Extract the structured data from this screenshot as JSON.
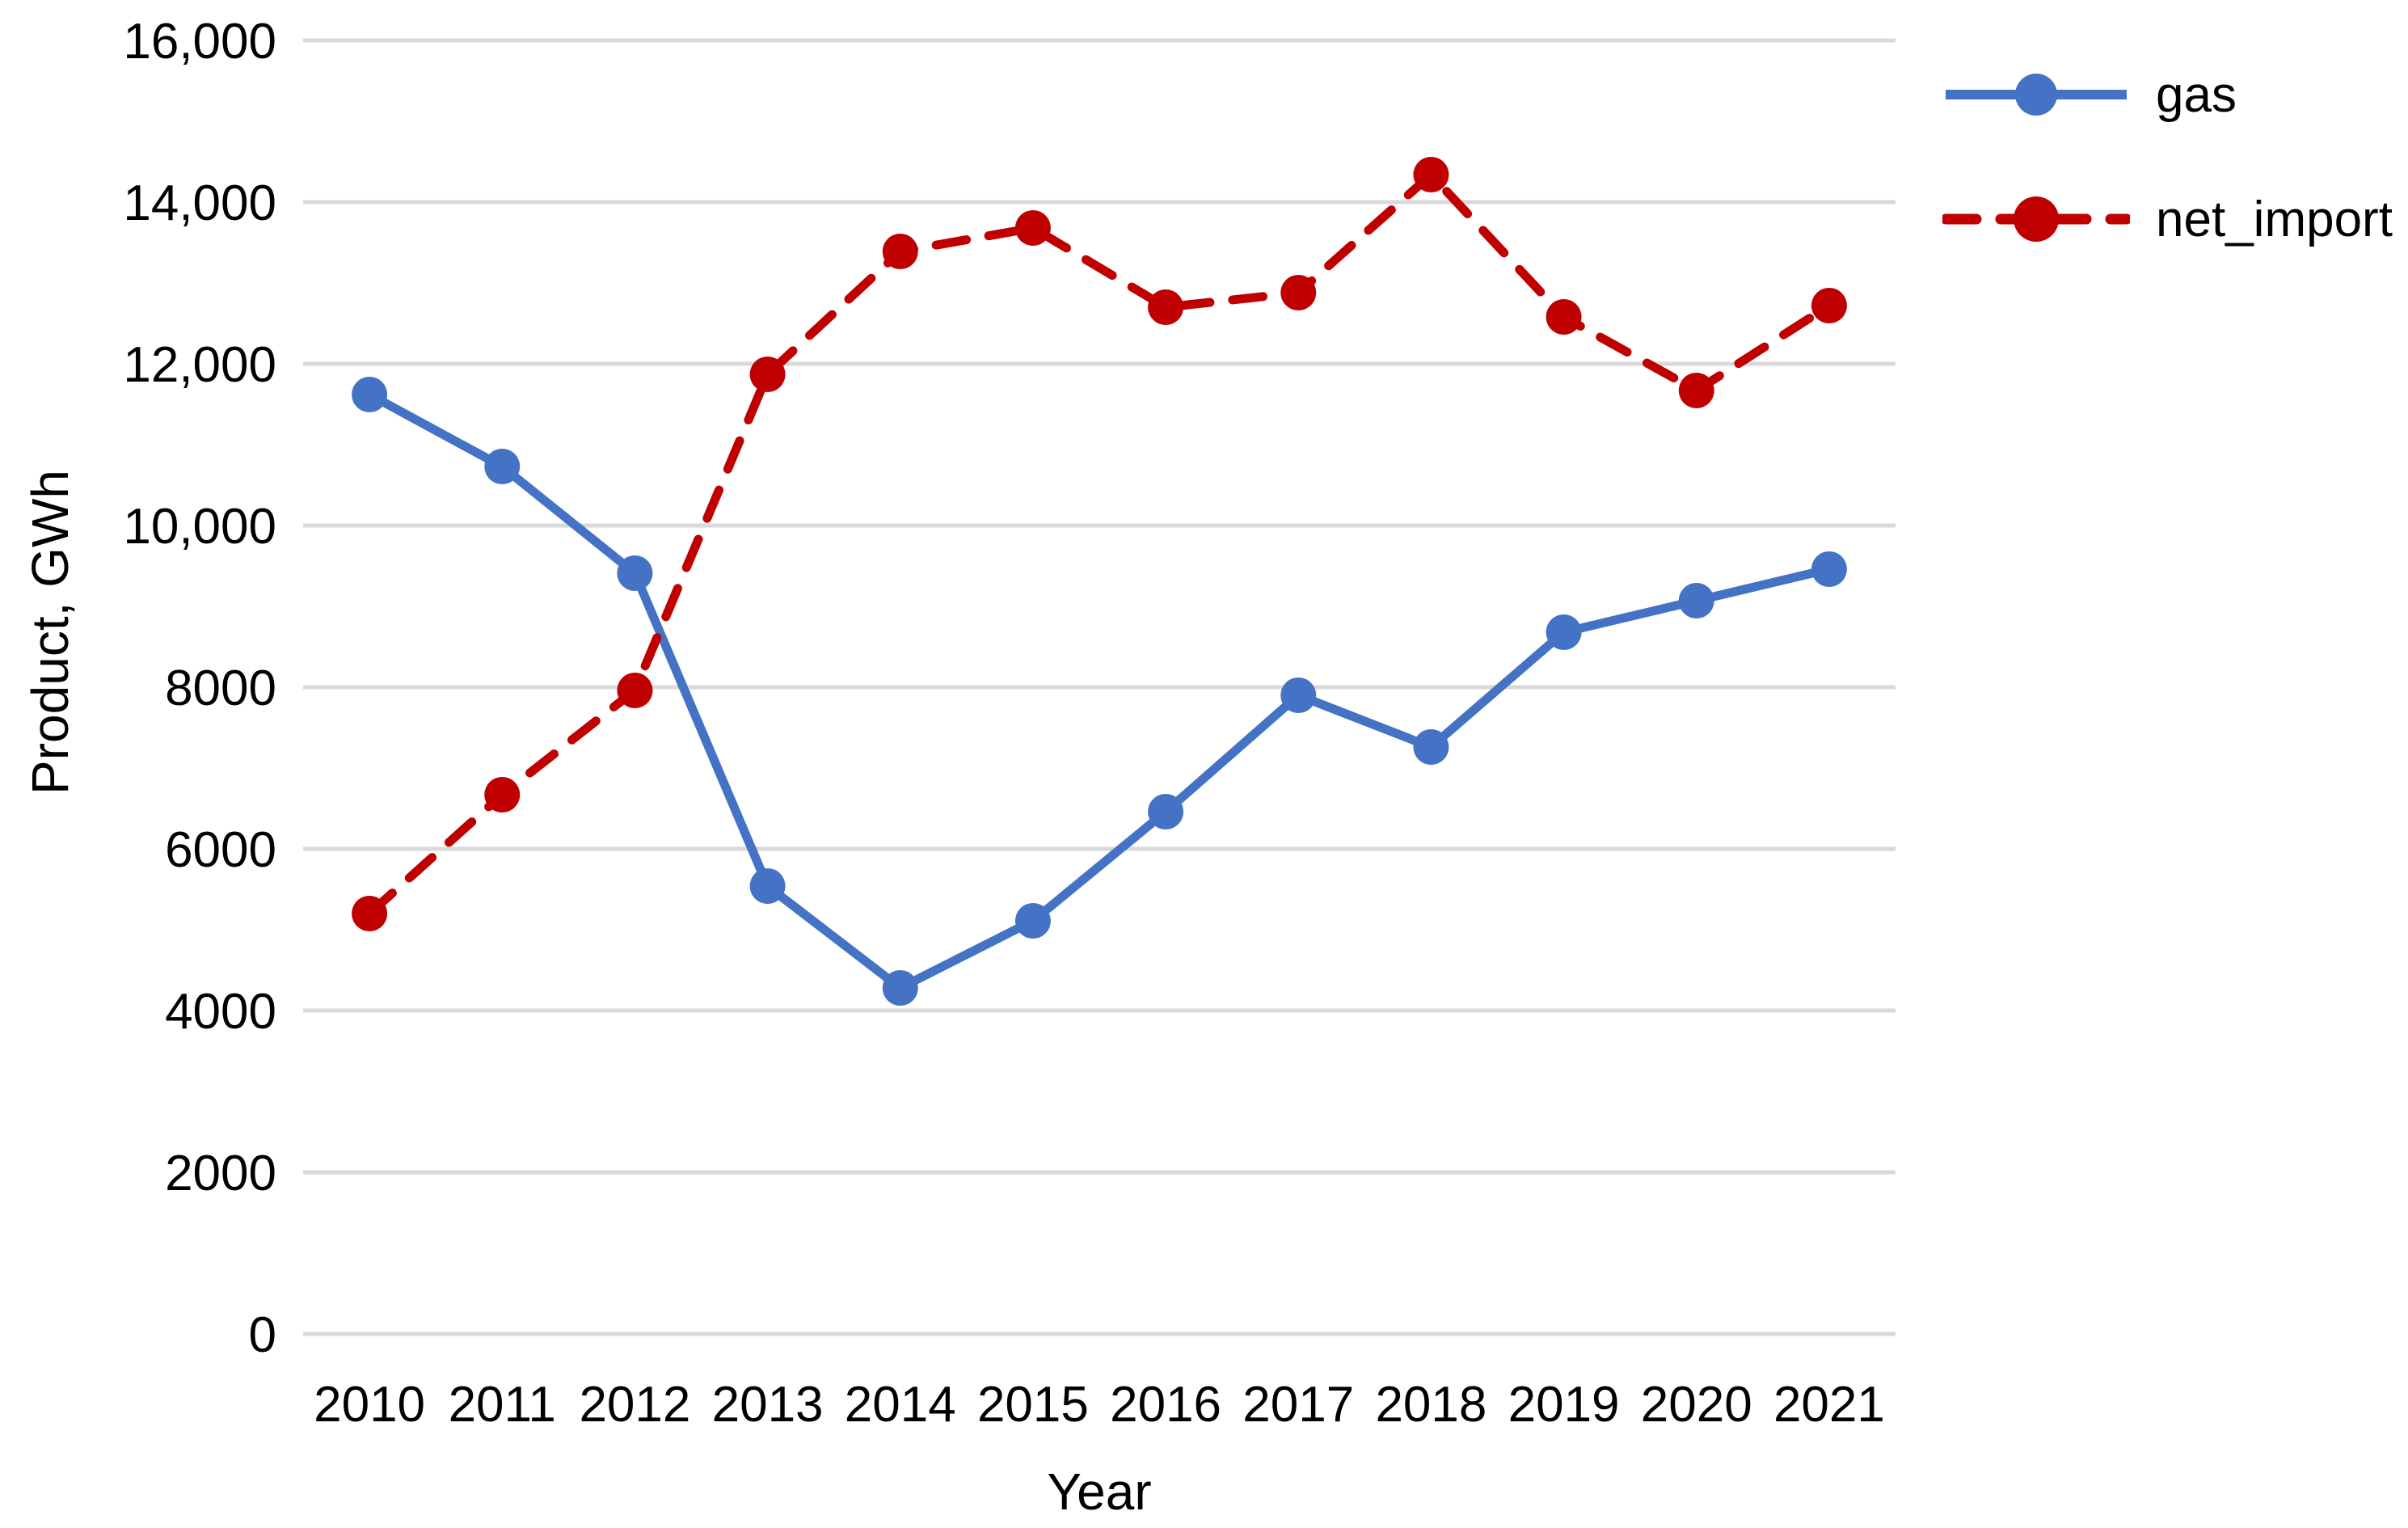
{
  "figure": {
    "background": "#ffffff"
  },
  "axes": {
    "y_title": "Product, GWh",
    "x_title": "Year",
    "y_tick_labels": [
      "16,000",
      "14,000",
      "12,000",
      "10,000",
      "8000",
      "6000",
      "4000",
      "2000",
      "0"
    ],
    "x_tick_labels": [
      "2010",
      "2011",
      "2012",
      "2013",
      "2014",
      "2015",
      "2016",
      "2017",
      "2018",
      "2019",
      "2020",
      "2021"
    ]
  },
  "colors": {
    "gas": "#4472C4",
    "net_import": "#C00000",
    "gridline": "#D9D9D9",
    "text": "#000000"
  },
  "legend": [
    {
      "label": "gas",
      "color": "#4472C4",
      "style": "solid"
    },
    {
      "label": "net_import",
      "color": "#C00000",
      "style": "dashed"
    }
  ],
  "chart_data": {
    "type": "line",
    "title": "",
    "xlabel": "Year",
    "ylabel": "Product, GWh",
    "categories": [
      2010,
      2011,
      2012,
      2013,
      2014,
      2015,
      2016,
      2017,
      2018,
      2019,
      2020,
      2021
    ],
    "series": [
      {
        "name": "gas",
        "color": "#4472C4",
        "line_style": "solid",
        "marker": "circle",
        "values": [
          11620,
          10730,
          9410,
          5540,
          4280,
          5110,
          6460,
          7900,
          7260,
          8680,
          9070,
          9460
        ]
      },
      {
        "name": "net_import",
        "color": "#C00000",
        "line_style": "dashed",
        "marker": "circle",
        "values": [
          5200,
          6670,
          7960,
          11870,
          13390,
          13680,
          12700,
          12880,
          14340,
          12580,
          11670,
          12720
        ]
      }
    ],
    "ylim": [
      0,
      16000
    ],
    "ytick_step": 2000,
    "grid": "horizontal",
    "legend_position": "top-right"
  }
}
